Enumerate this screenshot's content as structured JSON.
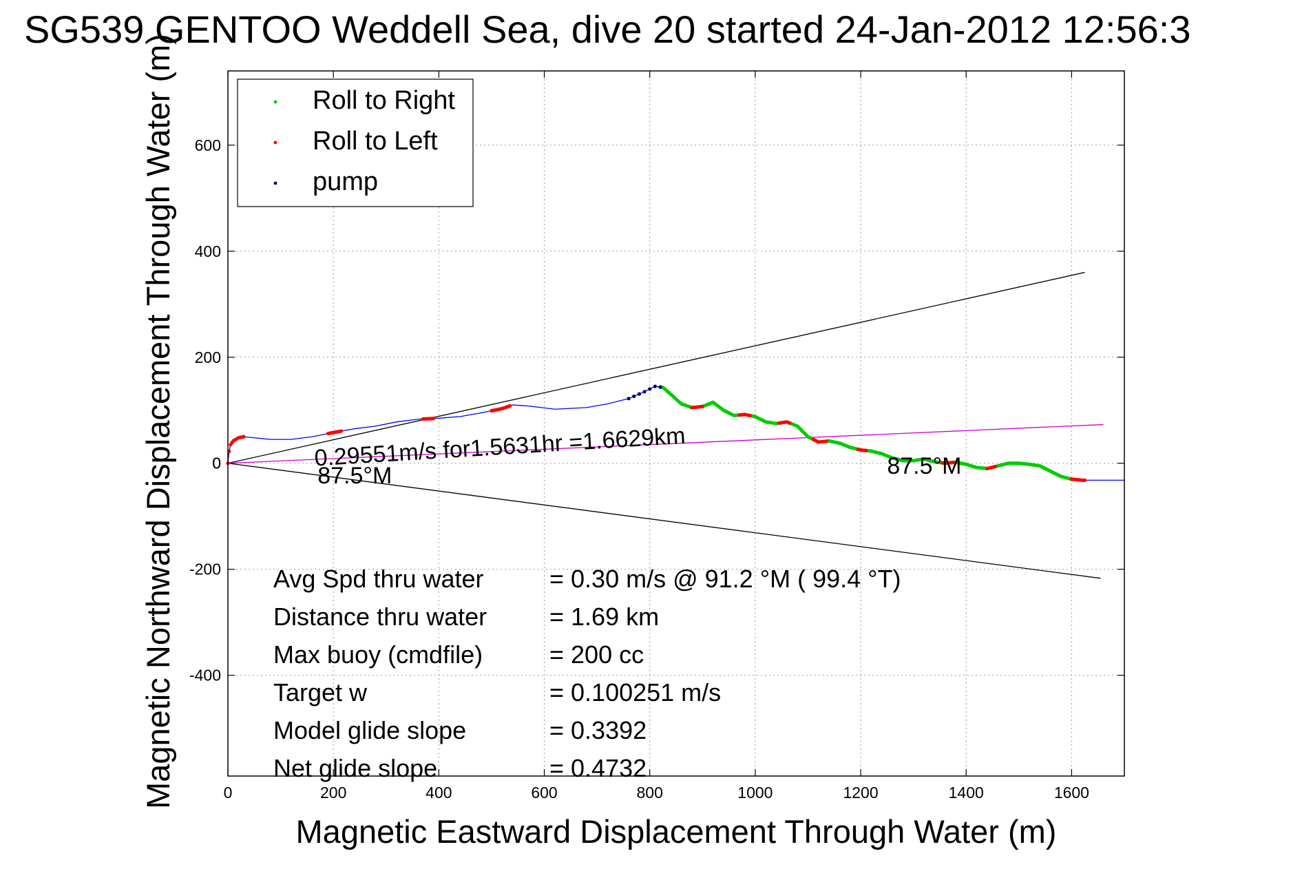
{
  "chart_data": {
    "type": "line",
    "title": "SG539 GENTOO Weddell Sea, dive 20 started 24-Jan-2012 12:56:3",
    "xlabel": "Magnetic Eastward Displacement Through Water (m)",
    "ylabel": "Magnetic Northward Displacement Through Water (m)",
    "xlim": [
      0,
      1700
    ],
    "ylim": [
      -590,
      740
    ],
    "x_ticks": [
      0,
      200,
      400,
      600,
      800,
      1000,
      1200,
      1400,
      1600
    ],
    "y_ticks": [
      -400,
      -200,
      0,
      200,
      400,
      600
    ],
    "grid": true,
    "legend_position": "top-left",
    "legend": [
      {
        "label": "Roll to Right",
        "color": "#00cc00"
      },
      {
        "label": "Roll to Left",
        "color": "#ff0000"
      },
      {
        "label": "pump",
        "color": "#000066"
      }
    ],
    "track": {
      "name": "track",
      "color": "#0000ff",
      "x": [
        0,
        2,
        5,
        10,
        20,
        30,
        50,
        80,
        120,
        160,
        200,
        240,
        280,
        320,
        360,
        400,
        440,
        480,
        520,
        540,
        570,
        620,
        680,
        720,
        760,
        790,
        810,
        825,
        840,
        860,
        880,
        900,
        920,
        940,
        960,
        980,
        1000,
        1020,
        1040,
        1060,
        1080,
        1100,
        1120,
        1140,
        1160,
        1180,
        1200,
        1220,
        1240,
        1260,
        1280,
        1300,
        1320,
        1340,
        1360,
        1380,
        1400,
        1420,
        1440,
        1460,
        1480,
        1500,
        1520,
        1540,
        1560,
        1580,
        1600,
        1620,
        1640,
        1700
      ],
      "y": [
        0,
        20,
        35,
        42,
        48,
        50,
        48,
        45,
        45,
        50,
        58,
        65,
        70,
        78,
        83,
        85,
        88,
        95,
        103,
        110,
        108,
        102,
        105,
        112,
        122,
        135,
        145,
        143,
        130,
        112,
        105,
        107,
        115,
        100,
        90,
        92,
        88,
        78,
        75,
        78,
        70,
        50,
        40,
        42,
        38,
        30,
        25,
        23,
        18,
        10,
        5,
        5,
        8,
        3,
        0,
        2,
        -2,
        -8,
        -10,
        -5,
        0,
        0,
        -2,
        -5,
        -15,
        -25,
        -30,
        -32,
        -32,
        -32
      ],
      "x_pump": [
        760,
        770,
        780,
        790,
        800,
        810,
        820
      ]
    },
    "reference_lines": [
      {
        "name": "upper-bound",
        "color": "#000000",
        "x": [
          0,
          1625
        ],
        "y": [
          0,
          360
        ]
      },
      {
        "name": "lower-bound",
        "color": "#000000",
        "x": [
          0,
          1655
        ],
        "y": [
          0,
          -217
        ]
      },
      {
        "name": "heading",
        "color": "#cc00cc",
        "x": [
          0,
          1660
        ],
        "y": [
          0,
          73
        ]
      }
    ],
    "annotations": [
      {
        "text": "0.29551m/s for1.5631hr =1.6629km",
        "x": 165,
        "y": -5,
        "rotate": -3.5
      },
      {
        "text": "87.5°M",
        "x": 170,
        "y": -38,
        "rotate": 0
      },
      {
        "text": "87.5°M",
        "x": 1250,
        "y": -20,
        "rotate": 0
      }
    ],
    "stats": [
      {
        "label": "Avg Spd thru water",
        "value": "=  0.30 m/s @  91.2 °M ( 99.4 °T)"
      },
      {
        "label": "Distance thru water",
        "value": "=  1.69 km"
      },
      {
        "label": "Max buoy (cmdfile)",
        "value": "= 200 cc"
      },
      {
        "label": "Target w",
        "value": "= 0.100251 m/s"
      },
      {
        "label": "Model glide slope",
        "value": "= 0.3392"
      },
      {
        "label": "Net glide slope",
        "value": "= 0.4732"
      }
    ]
  }
}
